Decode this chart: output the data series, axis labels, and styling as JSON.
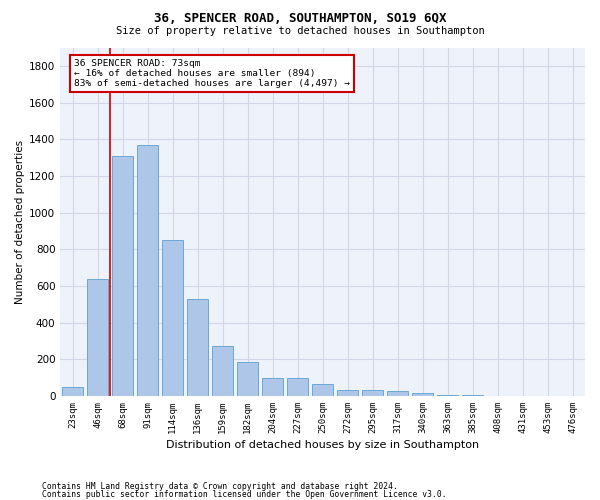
{
  "title1": "36, SPENCER ROAD, SOUTHAMPTON, SO19 6QX",
  "title2": "Size of property relative to detached houses in Southampton",
  "xlabel": "Distribution of detached houses by size in Southampton",
  "ylabel": "Number of detached properties",
  "categories": [
    "23sqm",
    "46sqm",
    "68sqm",
    "91sqm",
    "114sqm",
    "136sqm",
    "159sqm",
    "182sqm",
    "204sqm",
    "227sqm",
    "250sqm",
    "272sqm",
    "295sqm",
    "317sqm",
    "340sqm",
    "363sqm",
    "385sqm",
    "408sqm",
    "431sqm",
    "453sqm",
    "476sqm"
  ],
  "values": [
    50,
    640,
    1310,
    1370,
    850,
    530,
    275,
    185,
    100,
    100,
    65,
    35,
    35,
    25,
    15,
    5,
    5,
    2,
    2,
    2,
    2
  ],
  "bar_color": "#aec6e8",
  "bar_edge_color": "#5a9fd4",
  "grid_color": "#d0d8e8",
  "background_color": "#eef2fa",
  "annotation_text": "36 SPENCER ROAD: 73sqm\n← 16% of detached houses are smaller (894)\n83% of semi-detached houses are larger (4,497) →",
  "annotation_box_color": "#ffffff",
  "annotation_box_edge": "#cc0000",
  "vline_color": "#cc0000",
  "vline_x_index": 2,
  "ylim": [
    0,
    1900
  ],
  "yticks": [
    0,
    200,
    400,
    600,
    800,
    1000,
    1200,
    1400,
    1600,
    1800
  ],
  "footer1": "Contains HM Land Registry data © Crown copyright and database right 2024.",
  "footer2": "Contains public sector information licensed under the Open Government Licence v3.0."
}
